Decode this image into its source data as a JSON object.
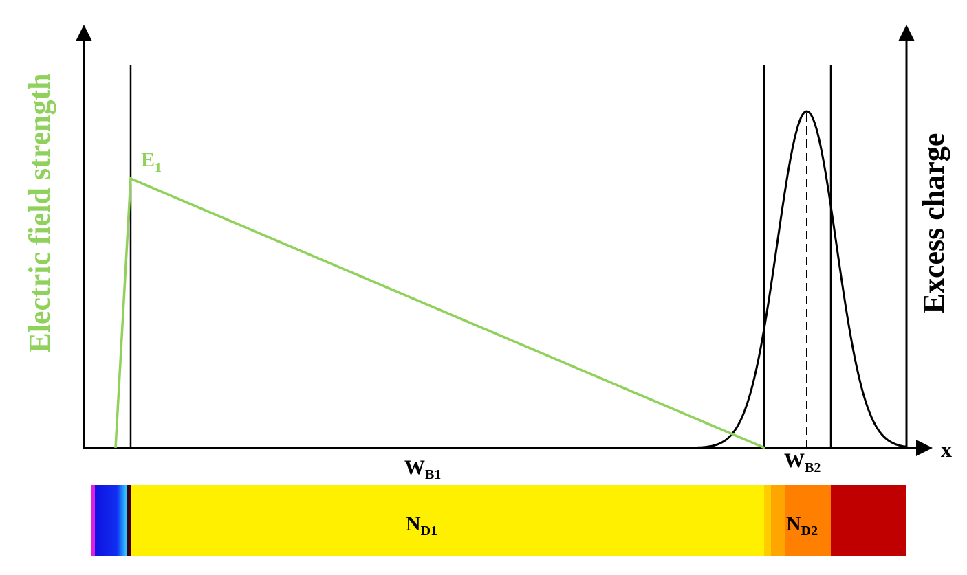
{
  "axes": {
    "left_label": "Electric field strength",
    "right_label": "Excess charge",
    "x_label": "x"
  },
  "labels": {
    "e1": {
      "main": "E",
      "sub": "1"
    },
    "wb1": {
      "main": "W",
      "sub": "B1"
    },
    "wb2": {
      "main": "W",
      "sub": "B2"
    },
    "nd1": {
      "main": "N",
      "sub": "D1"
    },
    "nd2": {
      "main": "N",
      "sub": "D2"
    }
  }
}
